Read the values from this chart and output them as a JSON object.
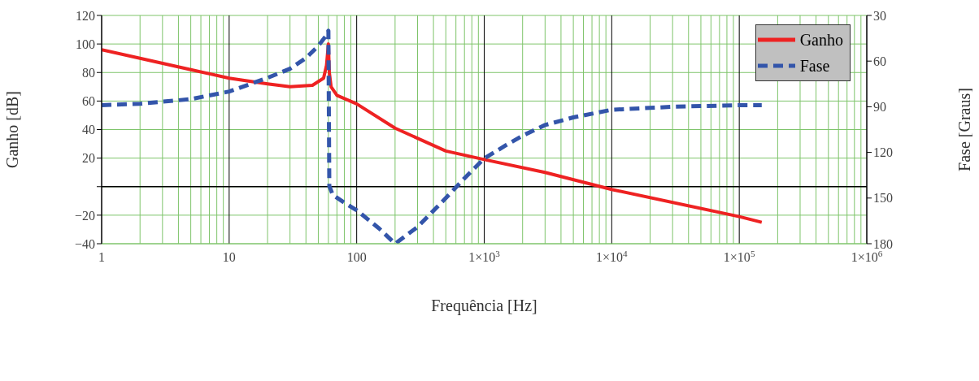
{
  "chart_data": {
    "type": "line",
    "xlabel": "Frequência [Hz]",
    "ylabel": "Ganho [dB]",
    "y2label": "Fase [Graus]",
    "log": "x",
    "grid": true,
    "legend": "top right",
    "marker": "none",
    "xlim": [
      1,
      1000000
    ],
    "xticks": [
      1,
      10,
      100,
      {
        "value": 1000,
        "label": "1×10$^{3}$"
      },
      {
        "value": 10000,
        "label": "1×10$^{4}$"
      },
      {
        "value": 100000,
        "label": "1×10$^{5}$"
      },
      {
        "value": 1000000,
        "label": "1×10$^{6}$"
      }
    ],
    "ylim": [
      -40,
      120
    ],
    "yticks": [
      {
        "value": -40,
        "label": "−40"
      },
      {
        "value": -20,
        "label": "−20"
      },
      {
        "value": 0,
        "label": null
      },
      20,
      40,
      60,
      80,
      100,
      120
    ],
    "y2lim": [
      180,
      30
    ],
    "y2ticks": [
      30,
      60,
      90,
      120,
      150,
      180
    ],
    "series": [
      {
        "name": "Ganho",
        "color": "#ee2222",
        "line_style": "solid",
        "x": [
          1,
          2,
          5,
          10,
          20,
          30,
          45,
          55,
          58,
          60,
          61,
          63,
          70,
          100,
          200,
          500,
          1000,
          3000,
          10000,
          100000,
          150000
        ],
        "values": [
          96,
          90,
          82,
          76,
          72,
          70,
          71,
          76,
          85,
          100,
          80,
          70,
          64,
          58,
          41,
          25,
          19,
          10,
          -2,
          -21,
          -25
        ]
      },
      {
        "name": "Fase",
        "color": "#3355aa",
        "line_style": "dashed",
        "axis": "y2",
        "x": [
          1,
          2,
          5,
          10,
          20,
          30,
          40,
          50,
          58,
          60,
          61,
          65,
          80,
          100,
          150,
          200,
          300,
          500,
          700,
          1000,
          1500,
          2000,
          3000,
          5000,
          10000,
          30000,
          100000,
          150000
        ],
        "values": [
          89,
          88,
          85,
          80,
          71,
          65,
          58,
          50,
          43,
          40,
          142,
          148,
          153,
          158,
          170,
          180,
          169,
          150,
          137,
          124,
          115,
          109,
          102,
          97,
          92,
          90,
          89,
          89
        ]
      }
    ]
  }
}
